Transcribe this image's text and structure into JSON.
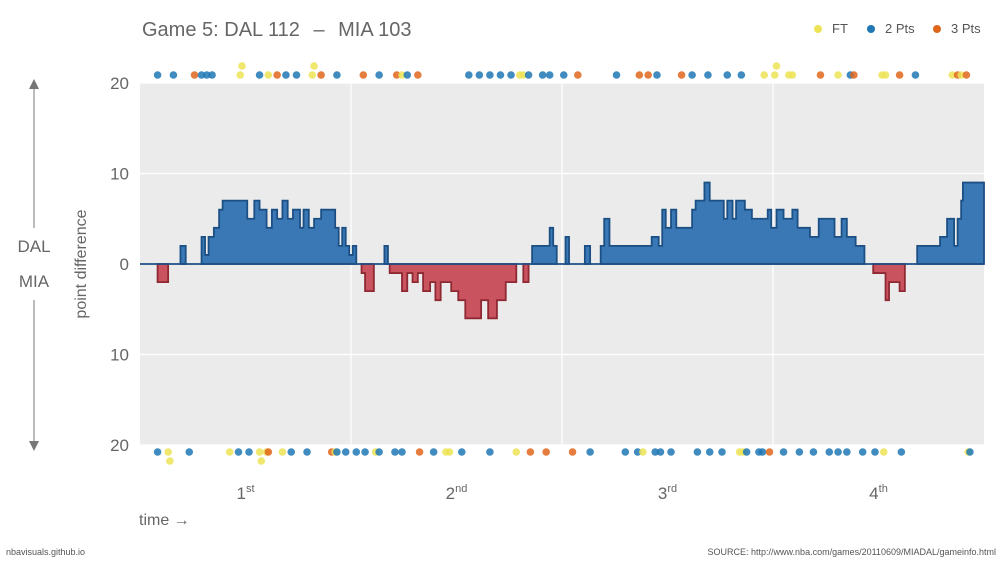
{
  "header": {
    "title_prefix": "Game 5: DAL 112",
    "title_dash": "–",
    "title_suffix": "MIA 103"
  },
  "legend": [
    {
      "label": "FT",
      "color": "#ede356"
    },
    {
      "label": "2 Pts",
      "color": "#1f77b4"
    },
    {
      "label": "3 Pts",
      "color": "#e0661c"
    }
  ],
  "footer": {
    "left": "nbavisuals.github.io",
    "right": "SOURCE: http://www.nba.com/games/20110609/MIADAL/gameinfo.html"
  },
  "chart_data": {
    "type": "area",
    "title": "Game 5: DAL 112 – MIA 103",
    "ylabel": "point difference",
    "xlabel": "time →",
    "side_labels": {
      "top": "DAL",
      "bottom": "MIA"
    },
    "y_ticks": [
      {
        "v": 20,
        "label": "20"
      },
      {
        "v": 10,
        "label": "10"
      },
      {
        "v": 0,
        "label": "0"
      },
      {
        "v": -10,
        "label": "10"
      },
      {
        "v": -20,
        "label": "20"
      }
    ],
    "ylim": [
      -20,
      20
    ],
    "xlim": [
      0,
      48
    ],
    "grid": true,
    "legend_position": "top-right",
    "colors": {
      "DAL": "#3a78b5",
      "MIA": "#c9545f",
      "FT": "#ede356",
      "2 Pts": "#1f77b4",
      "3 Pts": "#e0661c",
      "background": "#ebebeb"
    },
    "quarters": [
      {
        "num": "1",
        "sup": "st"
      },
      {
        "num": "2",
        "sup": "nd"
      },
      {
        "num": "3",
        "sup": "rd"
      },
      {
        "num": "4",
        "sup": "th"
      }
    ],
    "series": [
      {
        "name": "point difference",
        "points": [
          [
            0,
            0
          ],
          [
            1,
            -2
          ],
          [
            1.6,
            0
          ],
          [
            2.3,
            2
          ],
          [
            2.6,
            0
          ],
          [
            3.5,
            3
          ],
          [
            3.7,
            1
          ],
          [
            3.9,
            3
          ],
          [
            4.2,
            4
          ],
          [
            4.5,
            6
          ],
          [
            4.7,
            7
          ],
          [
            6.1,
            5
          ],
          [
            6.5,
            7
          ],
          [
            6.8,
            6
          ],
          [
            7.2,
            4
          ],
          [
            7.5,
            6
          ],
          [
            7.8,
            5
          ],
          [
            8.1,
            7
          ],
          [
            8.4,
            5
          ],
          [
            8.7,
            6
          ],
          [
            9.1,
            4
          ],
          [
            9.3,
            6
          ],
          [
            9.6,
            4
          ],
          [
            9.9,
            5
          ],
          [
            10.3,
            6
          ],
          [
            11.1,
            4
          ],
          [
            11.3,
            2
          ],
          [
            11.5,
            4
          ],
          [
            11.7,
            2
          ],
          [
            11.9,
            1
          ],
          [
            12.1,
            2
          ],
          [
            12.3,
            0
          ],
          [
            12.6,
            -1
          ],
          [
            12.8,
            -3
          ],
          [
            13.3,
            0
          ],
          [
            13.7,
            0
          ],
          [
            13.9,
            2
          ],
          [
            14.1,
            0
          ],
          [
            14.2,
            -1
          ],
          [
            14.9,
            -3
          ],
          [
            15.2,
            -1
          ],
          [
            15.5,
            -2
          ],
          [
            15.8,
            -1
          ],
          [
            16.1,
            -3
          ],
          [
            16.5,
            -2
          ],
          [
            16.8,
            -4
          ],
          [
            17.1,
            -2
          ],
          [
            17.7,
            -3
          ],
          [
            18.1,
            -4
          ],
          [
            18.5,
            -6
          ],
          [
            19.4,
            -4
          ],
          [
            19.8,
            -6
          ],
          [
            20.3,
            -4
          ],
          [
            20.8,
            -2
          ],
          [
            21.4,
            0
          ],
          [
            21.8,
            -2
          ],
          [
            22.1,
            0
          ],
          [
            22.3,
            2
          ],
          [
            23,
            2
          ],
          [
            23.3,
            4
          ],
          [
            23.5,
            2
          ],
          [
            23.7,
            0
          ],
          [
            24.2,
            3
          ],
          [
            24.4,
            0
          ],
          [
            25.3,
            2
          ],
          [
            25.6,
            0
          ],
          [
            26.2,
            2
          ],
          [
            26.4,
            5
          ],
          [
            26.7,
            2
          ],
          [
            27.8,
            0
          ],
          [
            27.8,
            2
          ],
          [
            29.1,
            3
          ],
          [
            29.5,
            2
          ],
          [
            29.7,
            6
          ],
          [
            29.9,
            4
          ],
          [
            30.2,
            6
          ],
          [
            30.5,
            4
          ],
          [
            31.4,
            6
          ],
          [
            31.6,
            7
          ],
          [
            32.1,
            9
          ],
          [
            32.4,
            7
          ],
          [
            33.2,
            5
          ],
          [
            33.4,
            7
          ],
          [
            33.7,
            5
          ],
          [
            33.9,
            7
          ],
          [
            34.4,
            6
          ],
          [
            34.8,
            5
          ],
          [
            35.7,
            6
          ],
          [
            35.9,
            4
          ],
          [
            36.2,
            6
          ],
          [
            36.6,
            5
          ],
          [
            37.1,
            6
          ],
          [
            37.4,
            4
          ],
          [
            38.1,
            3
          ],
          [
            38.6,
            5
          ],
          [
            39.5,
            3
          ],
          [
            39.9,
            5
          ],
          [
            40.2,
            3
          ],
          [
            40.7,
            2
          ],
          [
            41.2,
            0
          ],
          [
            41.7,
            -1
          ],
          [
            42.4,
            -4
          ],
          [
            42.6,
            -2
          ],
          [
            43.2,
            -3
          ],
          [
            43.5,
            0
          ],
          [
            44.2,
            0
          ],
          [
            44.2,
            2
          ],
          [
            45.5,
            3
          ],
          [
            45.9,
            5
          ],
          [
            46.3,
            2
          ],
          [
            46.5,
            5
          ],
          [
            46.7,
            7
          ],
          [
            46.8,
            9
          ],
          [
            47.2,
            9
          ]
        ]
      }
    ],
    "scoring_events": {
      "DAL": [
        [
          "2",
          1
        ],
        [
          "2",
          1.9
        ],
        [
          "3",
          3.1
        ],
        [
          "2",
          3.5
        ],
        [
          "2",
          3.8
        ],
        [
          "2",
          4.1
        ],
        [
          "FT",
          5.7
        ],
        [
          "FT",
          5.8
        ],
        [
          "2",
          6.8
        ],
        [
          "FT",
          7.3
        ],
        [
          "3",
          7.8
        ],
        [
          "2",
          8.3
        ],
        [
          "2",
          8.9
        ],
        [
          "FT",
          9.8
        ],
        [
          "FT",
          9.9
        ],
        [
          "3",
          10.3
        ],
        [
          "2",
          11.2
        ],
        [
          "3",
          12.7
        ],
        [
          "2",
          13.6
        ],
        [
          "3",
          14.6
        ],
        [
          "FT",
          14.9
        ],
        [
          "2",
          15.2
        ],
        [
          "3",
          15.8
        ],
        [
          "2",
          18.7
        ],
        [
          "2",
          19.3
        ],
        [
          "2",
          19.9
        ],
        [
          "2",
          20.5
        ],
        [
          "2",
          21.1
        ],
        [
          "FT",
          21.6
        ],
        [
          "FT",
          21.8
        ],
        [
          "2",
          22.1
        ],
        [
          "2",
          22.9
        ],
        [
          "2",
          23.3
        ],
        [
          "2",
          24.1
        ],
        [
          "3",
          24.9
        ],
        [
          "2",
          27.1
        ],
        [
          "3",
          28.4
        ],
        [
          "3",
          28.9
        ],
        [
          "2",
          29.4
        ],
        [
          "3",
          30.8
        ],
        [
          "2",
          31.4
        ],
        [
          "2",
          32.3
        ],
        [
          "2",
          33.4
        ],
        [
          "2",
          34.2
        ],
        [
          "FT",
          35.5
        ],
        [
          "FT",
          36.1
        ],
        [
          "FT",
          36.2
        ],
        [
          "FT",
          36.9
        ],
        [
          "FT",
          37.1
        ],
        [
          "3",
          38.7
        ],
        [
          "FT",
          39.7
        ],
        [
          "2",
          40.4
        ],
        [
          "3",
          40.6
        ],
        [
          "FT",
          42.2
        ],
        [
          "FT",
          42.4
        ],
        [
          "3",
          43.2
        ],
        [
          "2",
          44.1
        ],
        [
          "FT",
          46.2
        ],
        [
          "3",
          46.5
        ],
        [
          "FT",
          46.7
        ],
        [
          "3",
          47
        ]
      ],
      "MIA": [
        [
          "2",
          1
        ],
        [
          "FT",
          1.6
        ],
        [
          "FT",
          1.7
        ],
        [
          "2",
          2.8
        ],
        [
          "FT",
          5.1
        ],
        [
          "2",
          5.6
        ],
        [
          "2",
          6.2
        ],
        [
          "FT",
          6.8
        ],
        [
          "FT",
          6.9
        ],
        [
          "FT",
          7.2
        ],
        [
          "3",
          7.3
        ],
        [
          "FT",
          8.1
        ],
        [
          "2",
          8.6
        ],
        [
          "2",
          9.5
        ],
        [
          "3",
          10.9
        ],
        [
          "FT",
          11.1
        ],
        [
          "2",
          11.2
        ],
        [
          "2",
          11.7
        ],
        [
          "2",
          12.3
        ],
        [
          "2",
          12.8
        ],
        [
          "FT",
          13.4
        ],
        [
          "2",
          13.6
        ],
        [
          "2",
          14.5
        ],
        [
          "2",
          14.9
        ],
        [
          "3",
          15.9
        ],
        [
          "2",
          16.7
        ],
        [
          "FT",
          17.4
        ],
        [
          "FT",
          17.6
        ],
        [
          "2",
          18.3
        ],
        [
          "2",
          19.9
        ],
        [
          "FT",
          21.4
        ],
        [
          "3",
          22.2
        ],
        [
          "3",
          23.1
        ],
        [
          "3",
          24.6
        ],
        [
          "2",
          25.6
        ],
        [
          "2",
          27.6
        ],
        [
          "2",
          28.3
        ],
        [
          "FT",
          28.6
        ],
        [
          "2",
          29.3
        ],
        [
          "2",
          29.6
        ],
        [
          "2",
          30.2
        ],
        [
          "2",
          31.7
        ],
        [
          "2",
          32.4
        ],
        [
          "2",
          33.1
        ],
        [
          "FT",
          34.1
        ],
        [
          "FT",
          34.3
        ],
        [
          "2",
          34.5
        ],
        [
          "2",
          35.2
        ],
        [
          "2",
          35.4
        ],
        [
          "3",
          35.8
        ],
        [
          "2",
          36.6
        ],
        [
          "2",
          37.5
        ],
        [
          "2",
          38.3
        ],
        [
          "2",
          39.2
        ],
        [
          "2",
          39.7
        ],
        [
          "2",
          40.2
        ],
        [
          "2",
          41.1
        ],
        [
          "2",
          41.8
        ],
        [
          "FT",
          42.3
        ],
        [
          "2",
          43.3
        ],
        [
          "FT",
          47.1
        ],
        [
          "2",
          47.2
        ]
      ]
    }
  }
}
